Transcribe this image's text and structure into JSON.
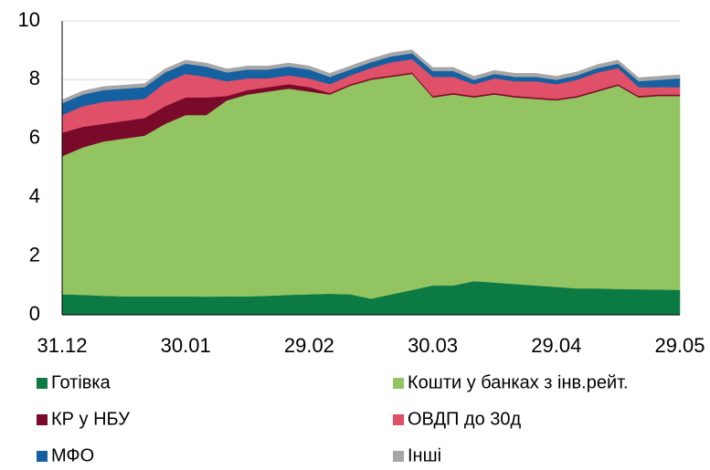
{
  "chart_data": {
    "type": "stacked_area",
    "categories": [
      "31.12",
      null,
      null,
      null,
      null,
      null,
      "30.01",
      null,
      null,
      null,
      null,
      null,
      "29.02",
      null,
      null,
      null,
      null,
      null,
      "30.03",
      null,
      null,
      null,
      null,
      null,
      "29.04",
      null,
      null,
      null,
      null,
      null,
      "29.05"
    ],
    "series": [
      {
        "name": "Готівка",
        "color": "#0b7a43",
        "values": [
          0.7,
          0.68,
          0.65,
          0.63,
          0.63,
          0.63,
          0.63,
          0.62,
          0.63,
          0.63,
          0.65,
          0.68,
          0.7,
          0.72,
          0.7,
          0.55,
          0.7,
          0.85,
          1.0,
          1.0,
          1.15,
          1.1,
          1.05,
          1.0,
          0.95,
          0.9,
          0.9,
          0.88,
          0.87,
          0.86,
          0.85
        ]
      },
      {
        "name": "Кошти у банках з інв.рейт.",
        "color": "#92c462",
        "values": [
          4.7,
          5.02,
          5.25,
          5.37,
          5.47,
          5.87,
          6.17,
          6.18,
          6.67,
          6.87,
          6.95,
          7.02,
          6.9,
          6.78,
          7.1,
          7.45,
          7.4,
          7.35,
          6.4,
          6.5,
          6.25,
          6.4,
          6.35,
          6.35,
          6.35,
          6.5,
          6.7,
          6.92,
          6.53,
          6.59,
          6.6
        ]
      },
      {
        "name": "КР у НБУ",
        "color": "#7a0a2a",
        "values": [
          0.8,
          0.7,
          0.6,
          0.6,
          0.6,
          0.6,
          0.6,
          0.6,
          0.15,
          0.15,
          0.15,
          0.15,
          0.15,
          0.05,
          0.05,
          0.05,
          0.05,
          0.05,
          0.05,
          0.05,
          0.05,
          0.05,
          0.05,
          0.05,
          0.05,
          0.05,
          0.05,
          0.05,
          0.05,
          0.05,
          0.05
        ]
      },
      {
        "name": "ОВДП до 30д",
        "color": "#e05068",
        "values": [
          0.6,
          0.7,
          0.75,
          0.7,
          0.65,
          0.8,
          0.8,
          0.7,
          0.5,
          0.4,
          0.3,
          0.3,
          0.3,
          0.3,
          0.3,
          0.35,
          0.45,
          0.45,
          0.65,
          0.55,
          0.4,
          0.5,
          0.5,
          0.55,
          0.5,
          0.55,
          0.6,
          0.55,
          0.3,
          0.25,
          0.25
        ]
      },
      {
        "name": "МФО",
        "color": "#1560a0",
        "values": [
          0.4,
          0.4,
          0.4,
          0.4,
          0.4,
          0.35,
          0.35,
          0.35,
          0.3,
          0.3,
          0.3,
          0.3,
          0.3,
          0.25,
          0.2,
          0.2,
          0.2,
          0.2,
          0.2,
          0.2,
          0.15,
          0.15,
          0.15,
          0.15,
          0.15,
          0.15,
          0.15,
          0.15,
          0.2,
          0.25,
          0.3
        ]
      },
      {
        "name": "Інші",
        "color": "#a6a6a6",
        "values": [
          0.12,
          0.12,
          0.12,
          0.12,
          0.12,
          0.12,
          0.12,
          0.12,
          0.12,
          0.12,
          0.12,
          0.12,
          0.12,
          0.12,
          0.12,
          0.12,
          0.12,
          0.12,
          0.12,
          0.12,
          0.12,
          0.12,
          0.12,
          0.12,
          0.12,
          0.12,
          0.12,
          0.12,
          0.12,
          0.12,
          0.12
        ]
      }
    ],
    "ylim": [
      0,
      10
    ],
    "yticks": [
      0,
      2,
      4,
      6,
      8,
      10
    ],
    "grid": true
  }
}
